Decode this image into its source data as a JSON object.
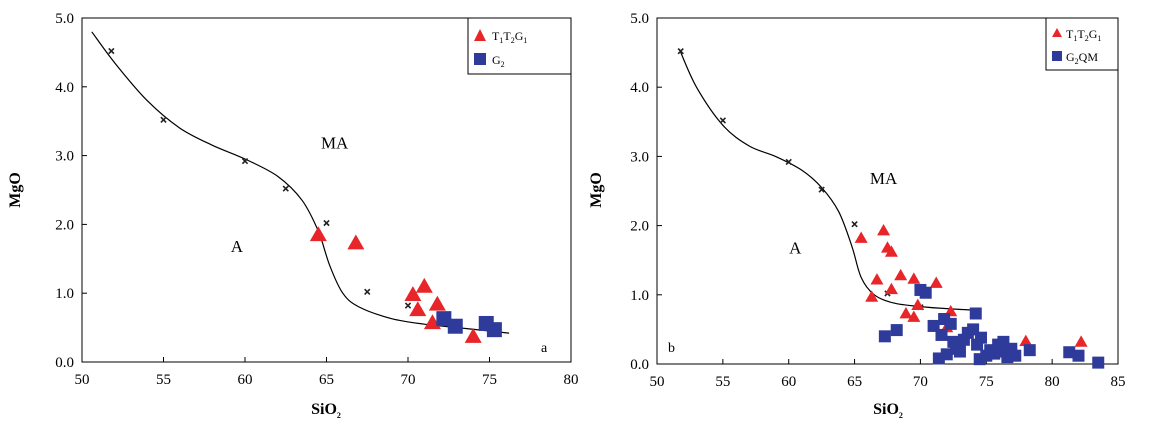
{
  "chart_data": [
    {
      "type": "scatter",
      "panel_label": "a",
      "xlabel": "SiO2",
      "ylabel": "MgO",
      "xlim": [
        50,
        80
      ],
      "ylim": [
        0,
        5
      ],
      "xticks": [
        50,
        55,
        60,
        65,
        70,
        75,
        80
      ],
      "yticks": [
        0.0,
        1.0,
        2.0,
        3.0,
        4.0,
        5.0
      ],
      "tick_labels_x": [
        "50",
        "55",
        "60",
        "65",
        "70",
        "75",
        "80"
      ],
      "tick_labels_y": [
        "0.0",
        "1.0",
        "2.0",
        "3.0",
        "4.0",
        "5.0"
      ],
      "regions": [
        {
          "label": "MA",
          "x": 65.5,
          "y": 3.1
        },
        {
          "label": "A",
          "x": 59.5,
          "y": 1.6
        }
      ],
      "boundary_curve": [
        [
          50.6,
          4.8
        ],
        [
          52,
          4.35
        ],
        [
          54,
          3.8
        ],
        [
          56,
          3.4
        ],
        [
          58,
          3.15
        ],
        [
          60,
          2.95
        ],
        [
          62,
          2.7
        ],
        [
          63.5,
          2.35
        ],
        [
          64.5,
          1.9
        ],
        [
          65.2,
          1.4
        ],
        [
          66,
          1.0
        ],
        [
          67,
          0.8
        ],
        [
          69,
          0.63
        ],
        [
          71,
          0.55
        ],
        [
          73,
          0.5
        ],
        [
          75,
          0.45
        ],
        [
          76.2,
          0.42
        ]
      ],
      "reference_points": [
        [
          51.8,
          4.52
        ],
        [
          55,
          3.52
        ],
        [
          60,
          2.92
        ],
        [
          62.5,
          2.52
        ],
        [
          65,
          2.02
        ],
        [
          67.5,
          1.02
        ],
        [
          70,
          0.82
        ]
      ],
      "legend": {
        "position": "top-right"
      },
      "series": [
        {
          "name": "T1T2G1",
          "marker": "triangle",
          "color": "#e8262a",
          "x": [
            64.5,
            66.8,
            70.3,
            70.6,
            71.0,
            71.5,
            71.8,
            74.0
          ],
          "y": [
            1.85,
            1.73,
            0.98,
            0.76,
            1.1,
            0.57,
            0.84,
            0.37
          ]
        },
        {
          "name": "G2",
          "marker": "square",
          "color": "#2e3b9b",
          "x": [
            72.2,
            72.9,
            74.8,
            75.3
          ],
          "y": [
            0.63,
            0.52,
            0.56,
            0.47
          ]
        }
      ]
    },
    {
      "type": "scatter",
      "panel_label": "b",
      "xlabel": "SiO2",
      "ylabel": "MgO",
      "xlim": [
        50,
        85
      ],
      "ylim": [
        0,
        5
      ],
      "xticks": [
        50,
        55,
        60,
        65,
        70,
        75,
        80,
        85
      ],
      "yticks": [
        0.0,
        1.0,
        2.0,
        3.0,
        4.0,
        5.0
      ],
      "tick_labels_x": [
        "50",
        "55",
        "60",
        "65",
        "70",
        "75",
        "80",
        "85"
      ],
      "tick_labels_y": [
        "0.0",
        "1.0",
        "2.0",
        "3.0",
        "4.0",
        "5.0"
      ],
      "regions": [
        {
          "label": "MA",
          "x": 67.2,
          "y": 2.6
        },
        {
          "label": "A",
          "x": 60.5,
          "y": 1.6
        }
      ],
      "boundary_curve": [
        [
          51.7,
          4.55
        ],
        [
          53,
          4.0
        ],
        [
          55,
          3.45
        ],
        [
          57,
          3.15
        ],
        [
          59,
          3.0
        ],
        [
          61,
          2.8
        ],
        [
          62.5,
          2.55
        ],
        [
          63.8,
          2.2
        ],
        [
          64.8,
          1.7
        ],
        [
          65.5,
          1.25
        ],
        [
          66.5,
          1.0
        ],
        [
          68,
          0.88
        ],
        [
          70,
          0.83
        ],
        [
          72,
          0.8
        ],
        [
          74,
          0.78
        ]
      ],
      "reference_points": [
        [
          51.8,
          4.52
        ],
        [
          55,
          3.52
        ],
        [
          60,
          2.92
        ],
        [
          62.5,
          2.52
        ],
        [
          65,
          2.02
        ],
        [
          67.5,
          1.02
        ],
        [
          70,
          0.82
        ]
      ],
      "legend": {
        "position": "top-right"
      },
      "series": [
        {
          "name": "T1T2G1",
          "marker": "triangle",
          "color": "#e8262a",
          "x": [
            65.5,
            66.3,
            66.7,
            67.2,
            67.5,
            67.8,
            67.8,
            68.5,
            68.9,
            69.5,
            69.5,
            69.8,
            71.2,
            72.0,
            72.3,
            78.0,
            82.2
          ],
          "y": [
            1.82,
            0.97,
            1.22,
            1.93,
            1.68,
            1.62,
            1.08,
            1.28,
            0.73,
            1.23,
            0.68,
            0.85,
            1.17,
            0.53,
            0.76,
            0.33,
            0.32
          ]
        },
        {
          "name": "G2QM",
          "marker": "square",
          "color": "#2e3b9b",
          "x": [
            67.3,
            68.2,
            70.0,
            70.4,
            71.0,
            71.4,
            71.6,
            71.8,
            72.0,
            72.3,
            72.5,
            72.7,
            73.0,
            73.3,
            73.6,
            74.0,
            74.2,
            74.3,
            74.5,
            74.6,
            75.0,
            75.3,
            75.6,
            75.9,
            76.1,
            76.3,
            76.6,
            76.9,
            77.2,
            78.3,
            81.3,
            82.0,
            83.5
          ],
          "y": [
            0.4,
            0.49,
            1.07,
            1.03,
            0.55,
            0.08,
            0.42,
            0.65,
            0.14,
            0.58,
            0.32,
            0.22,
            0.18,
            0.35,
            0.45,
            0.5,
            0.73,
            0.28,
            0.07,
            0.38,
            0.12,
            0.2,
            0.15,
            0.28,
            0.18,
            0.32,
            0.1,
            0.22,
            0.12,
            0.2,
            0.17,
            0.12,
            0.02
          ]
        }
      ]
    }
  ]
}
